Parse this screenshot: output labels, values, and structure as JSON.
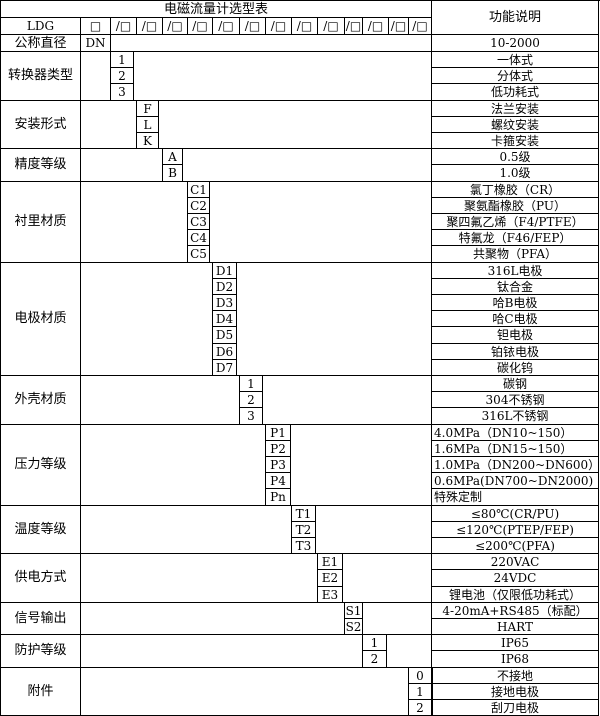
{
  "title": "电磁流量计选型表",
  "function_header": "功能说明",
  "model_row": {
    "prefix": "LDG",
    "slots": [
      "□",
      "/□",
      "/□",
      "/□",
      "/□",
      "/□",
      "/□",
      "/□",
      "/□",
      "/□",
      "/□",
      "/□",
      "/□",
      "/□"
    ]
  },
  "nominal_diameter": {
    "label": "公称直径",
    "code": "DN",
    "desc": "10-2000"
  },
  "groups": [
    {
      "key": "converter",
      "label": "转换器类型",
      "options": [
        {
          "code": "1",
          "desc": "一体式"
        },
        {
          "code": "2",
          "desc": "分体式"
        },
        {
          "code": "3",
          "desc": "低功耗式"
        }
      ]
    },
    {
      "key": "install",
      "label": "安装形式",
      "options": [
        {
          "code": "F",
          "desc": "法兰安装"
        },
        {
          "code": "L",
          "desc": "螺纹安装"
        },
        {
          "code": "K",
          "desc": "卡箍安装"
        }
      ]
    },
    {
      "key": "accuracy",
      "label": "精度等级",
      "options": [
        {
          "code": "A",
          "desc": "0.5级"
        },
        {
          "code": "B",
          "desc": "1.0级"
        }
      ]
    },
    {
      "key": "lining",
      "label": "衬里材质",
      "options": [
        {
          "code": "C1",
          "desc": "氯丁橡胶（CR）"
        },
        {
          "code": "C2",
          "desc": "聚氨酯橡胶（PU）"
        },
        {
          "code": "C3",
          "desc": "聚四氟乙烯（F4/PTFE）"
        },
        {
          "code": "C4",
          "desc": "特氟龙（F46/FEP）"
        },
        {
          "code": "C5",
          "desc": "共聚物（PFA）"
        }
      ]
    },
    {
      "key": "electrode",
      "label": "电极材质",
      "options": [
        {
          "code": "D1",
          "desc": "316L电极"
        },
        {
          "code": "D2",
          "desc": "钛合金"
        },
        {
          "code": "D3",
          "desc": "哈B电极"
        },
        {
          "code": "D4",
          "desc": "哈C电极"
        },
        {
          "code": "D5",
          "desc": "钽电极"
        },
        {
          "code": "D6",
          "desc": "铂铱电极"
        },
        {
          "code": "D7",
          "desc": "碳化钨"
        }
      ]
    },
    {
      "key": "housing",
      "label": "外壳材质",
      "options": [
        {
          "code": "1",
          "desc": "碳钢"
        },
        {
          "code": "2",
          "desc": "304不锈钢"
        },
        {
          "code": "3",
          "desc": "316L不锈钢"
        }
      ]
    },
    {
      "key": "pressure",
      "label": "压力等级",
      "options": [
        {
          "code": "P1",
          "desc": "4.0MPa（DN10~150）"
        },
        {
          "code": "P2",
          "desc": "1.6MPa（DN15~150）"
        },
        {
          "code": "P3",
          "desc": "1.0MPa（DN200~DN600）"
        },
        {
          "code": "P4",
          "desc": "0.6MPa(DN700~DN2000)"
        },
        {
          "code": "Pn",
          "desc": "特殊定制"
        }
      ]
    },
    {
      "key": "temperature",
      "label": "温度等级",
      "options": [
        {
          "code": "T1",
          "desc": "≤80℃(CR/PU)"
        },
        {
          "code": "T2",
          "desc": "≤120℃(PTEP/FEP)"
        },
        {
          "code": "T3",
          "desc": "≤200℃(PFA)"
        }
      ]
    },
    {
      "key": "power",
      "label": "供电方式",
      "options": [
        {
          "code": "E1",
          "desc": "220VAC"
        },
        {
          "code": "E2",
          "desc": "24VDC"
        },
        {
          "code": "E3",
          "desc": "锂电池（仅限低功耗式）"
        }
      ]
    },
    {
      "key": "signal",
      "label": "信号输出",
      "options": [
        {
          "code": "S1",
          "desc": "4-20mA+RS485（标配）"
        },
        {
          "code": "S2",
          "desc": "HART"
        }
      ]
    },
    {
      "key": "protection",
      "label": "防护等级",
      "options": [
        {
          "code": "1",
          "desc": "IP65"
        },
        {
          "code": "2",
          "desc": "IP68"
        }
      ]
    },
    {
      "key": "accessory",
      "label": "附件",
      "options": [
        {
          "code": "0",
          "desc": "不接地"
        },
        {
          "code": "1",
          "desc": "接地电极"
        },
        {
          "code": "2",
          "desc": "刮刀电极"
        }
      ]
    }
  ]
}
